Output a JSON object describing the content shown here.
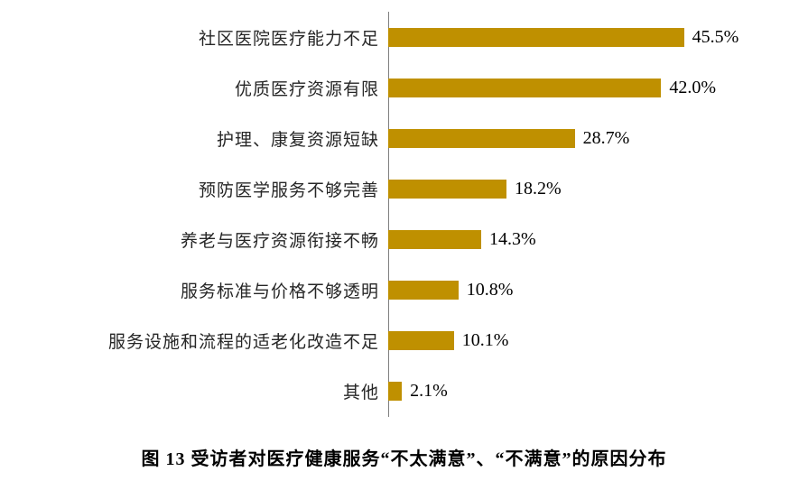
{
  "chart_data": {
    "type": "bar",
    "orientation": "horizontal",
    "title": "图 13 受访者对医疗健康服务“不太满意”、“不满意”的原因分布",
    "categories": [
      "社区医院医疗能力不足",
      "优质医疗资源有限",
      "护理、康复资源短缺",
      "预防医学服务不够完善",
      "养老与医疗资源衔接不畅",
      "服务标准与价格不够透明",
      "服务设施和流程的适老化改造不足",
      "其他"
    ],
    "values": [
      45.5,
      42.0,
      28.7,
      18.2,
      14.3,
      10.8,
      10.1,
      2.1
    ],
    "value_suffix": "%",
    "value_labels": [
      "45.5%",
      "42.0%",
      "28.7%",
      "18.2%",
      "14.3%",
      "10.8%",
      "10.1%",
      "2.1%"
    ],
    "bar_color": "#BF9000",
    "axis_color": "#7f7f7f",
    "xlim": [
      0,
      50
    ],
    "grid": false,
    "legend": false,
    "xlabel": "",
    "ylabel": ""
  }
}
